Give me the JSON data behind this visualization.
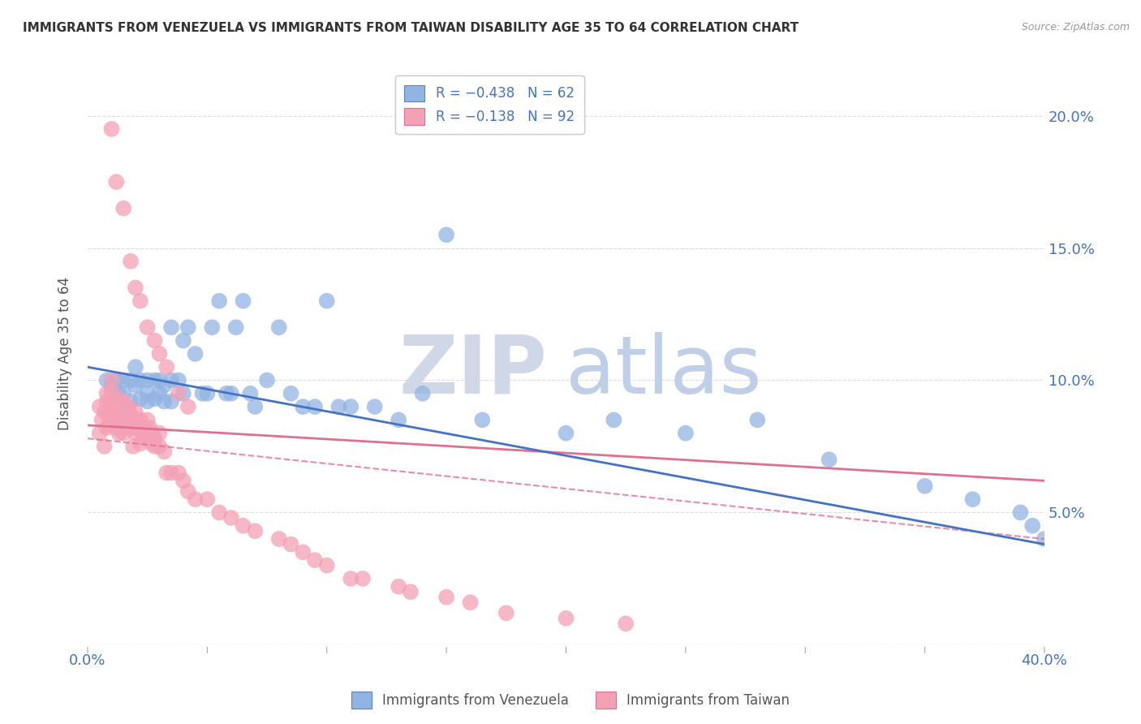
{
  "title": "IMMIGRANTS FROM VENEZUELA VS IMMIGRANTS FROM TAIWAN DISABILITY AGE 35 TO 64 CORRELATION CHART",
  "source": "Source: ZipAtlas.com",
  "ylabel": "Disability Age 35 to 64",
  "xlim": [
    0.0,
    0.4
  ],
  "ylim": [
    0.0,
    0.22
  ],
  "xtick_positions": [
    0.0,
    0.05,
    0.1,
    0.15,
    0.2,
    0.25,
    0.3,
    0.35,
    0.4
  ],
  "xtick_labels": [
    "0.0%",
    "",
    "",
    "",
    "",
    "",
    "",
    "",
    "40.0%"
  ],
  "ytick_positions": [
    0.0,
    0.05,
    0.1,
    0.15,
    0.2
  ],
  "ytick_right_labels": [
    "",
    "5.0%",
    "10.0%",
    "15.0%",
    "20.0%"
  ],
  "legend_entries": [
    {
      "label": "R = −0.438   N = 62",
      "color": "#92b4e3"
    },
    {
      "label": "R = −0.138   N = 92",
      "color": "#f4a0b5"
    }
  ],
  "legend_bottom": [
    {
      "label": "Immigrants from Venezuela",
      "color": "#92b4e3"
    },
    {
      "label": "Immigrants from Taiwan",
      "color": "#f4a0b5"
    }
  ],
  "blue_scatter": {
    "x": [
      0.008,
      0.01,
      0.012,
      0.013,
      0.015,
      0.015,
      0.018,
      0.018,
      0.02,
      0.02,
      0.022,
      0.022,
      0.025,
      0.025,
      0.025,
      0.028,
      0.028,
      0.03,
      0.03,
      0.032,
      0.032,
      0.035,
      0.035,
      0.035,
      0.038,
      0.04,
      0.04,
      0.042,
      0.045,
      0.048,
      0.05,
      0.052,
      0.055,
      0.058,
      0.06,
      0.062,
      0.065,
      0.068,
      0.07,
      0.075,
      0.08,
      0.085,
      0.09,
      0.095,
      0.1,
      0.105,
      0.11,
      0.12,
      0.13,
      0.14,
      0.15,
      0.165,
      0.2,
      0.22,
      0.25,
      0.28,
      0.31,
      0.35,
      0.37,
      0.39,
      0.395,
      0.4
    ],
    "y": [
      0.1,
      0.098,
      0.1,
      0.095,
      0.1,
      0.095,
      0.1,
      0.092,
      0.105,
      0.098,
      0.1,
      0.093,
      0.1,
      0.095,
      0.092,
      0.1,
      0.093,
      0.1,
      0.095,
      0.098,
      0.092,
      0.12,
      0.1,
      0.092,
      0.1,
      0.115,
      0.095,
      0.12,
      0.11,
      0.095,
      0.095,
      0.12,
      0.13,
      0.095,
      0.095,
      0.12,
      0.13,
      0.095,
      0.09,
      0.1,
      0.12,
      0.095,
      0.09,
      0.09,
      0.13,
      0.09,
      0.09,
      0.09,
      0.085,
      0.095,
      0.155,
      0.085,
      0.08,
      0.085,
      0.08,
      0.085,
      0.07,
      0.06,
      0.055,
      0.05,
      0.045,
      0.04
    ]
  },
  "pink_scatter": {
    "x": [
      0.005,
      0.005,
      0.006,
      0.007,
      0.007,
      0.008,
      0.008,
      0.008,
      0.009,
      0.009,
      0.01,
      0.01,
      0.01,
      0.01,
      0.011,
      0.011,
      0.012,
      0.012,
      0.012,
      0.013,
      0.013,
      0.013,
      0.014,
      0.014,
      0.015,
      0.015,
      0.015,
      0.016,
      0.016,
      0.017,
      0.017,
      0.018,
      0.018,
      0.019,
      0.019,
      0.02,
      0.02,
      0.02,
      0.021,
      0.022,
      0.022,
      0.023,
      0.024,
      0.024,
      0.025,
      0.025,
      0.026,
      0.026,
      0.027,
      0.027,
      0.028,
      0.028,
      0.03,
      0.03,
      0.032,
      0.033,
      0.035,
      0.038,
      0.04,
      0.042,
      0.045,
      0.05,
      0.055,
      0.06,
      0.065,
      0.07,
      0.08,
      0.085,
      0.09,
      0.095,
      0.1,
      0.11,
      0.115,
      0.13,
      0.135,
      0.15,
      0.16,
      0.175,
      0.2,
      0.225,
      0.01,
      0.012,
      0.015,
      0.018,
      0.02,
      0.022,
      0.025,
      0.028,
      0.03,
      0.033,
      0.038,
      0.042
    ],
    "y": [
      0.08,
      0.09,
      0.085,
      0.075,
      0.088,
      0.082,
      0.092,
      0.095,
      0.083,
      0.087,
      0.088,
      0.092,
      0.096,
      0.1,
      0.085,
      0.09,
      0.088,
      0.093,
      0.082,
      0.088,
      0.092,
      0.08,
      0.086,
      0.092,
      0.092,
      0.08,
      0.086,
      0.088,
      0.082,
      0.085,
      0.09,
      0.082,
      0.087,
      0.085,
      0.075,
      0.085,
      0.08,
      0.088,
      0.082,
      0.085,
      0.076,
      0.08,
      0.078,
      0.082,
      0.08,
      0.085,
      0.078,
      0.082,
      0.076,
      0.08,
      0.078,
      0.075,
      0.075,
      0.08,
      0.073,
      0.065,
      0.065,
      0.065,
      0.062,
      0.058,
      0.055,
      0.055,
      0.05,
      0.048,
      0.045,
      0.043,
      0.04,
      0.038,
      0.035,
      0.032,
      0.03,
      0.025,
      0.025,
      0.022,
      0.02,
      0.018,
      0.016,
      0.012,
      0.01,
      0.008,
      0.195,
      0.175,
      0.165,
      0.145,
      0.135,
      0.13,
      0.12,
      0.115,
      0.11,
      0.105,
      0.095,
      0.09
    ]
  },
  "blue_line": {
    "x_start": 0.0,
    "x_end": 0.4,
    "y_start": 0.105,
    "y_end": 0.038,
    "color": "#4472c4",
    "linewidth": 2.0
  },
  "pink_line": {
    "x_start": 0.0,
    "x_end": 0.4,
    "y_start": 0.083,
    "y_end": 0.062,
    "color": "#e07090",
    "linewidth": 2.0
  },
  "pink_dashed_line": {
    "x_start": 0.0,
    "x_end": 0.4,
    "y_start": 0.078,
    "y_end": 0.04,
    "color": "#e07090",
    "linewidth": 1.5,
    "linestyle": "--"
  },
  "watermark_zip": "ZIP",
  "watermark_atlas": "atlas",
  "watermark_color": "#ccd9ee",
  "background_color": "#ffffff",
  "title_fontsize": 11,
  "axis_color": "#4472c4",
  "grid_color": "#dddddd"
}
